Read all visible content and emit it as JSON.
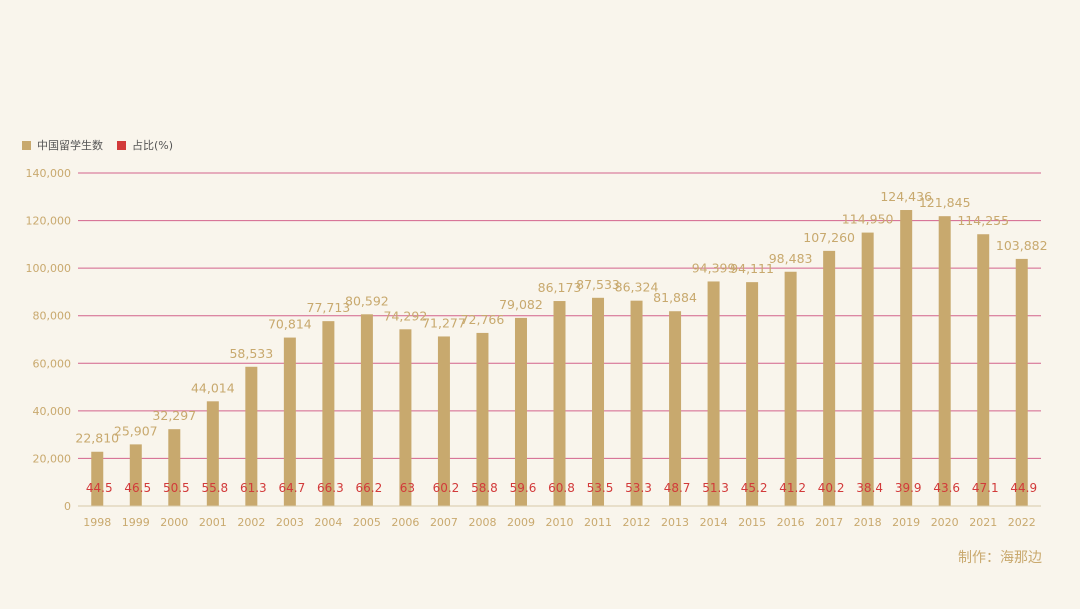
{
  "colors": {
    "background": "#f9f5ec",
    "bar": "#c8a96e",
    "grid": "#c7336b",
    "axis_text": "#c9a96e",
    "value_label": "#c8a96e",
    "share_label": "#d23a3a"
  },
  "legend": {
    "items": [
      {
        "label": "中国留学生数",
        "color": "#c8a96e"
      },
      {
        "label": "占比(%)",
        "color": "#d23a3a"
      }
    ]
  },
  "credit": "制作：海那边",
  "chart_data": {
    "type": "bar",
    "categories": [
      "1998",
      "1999",
      "2000",
      "2001",
      "2002",
      "2003",
      "2004",
      "2005",
      "2006",
      "2007",
      "2008",
      "2009",
      "2010",
      "2011",
      "2012",
      "2013",
      "2014",
      "2015",
      "2016",
      "2017",
      "2018",
      "2019",
      "2020",
      "2021",
      "2022"
    ],
    "series": [
      {
        "name": "中国留学生数",
        "values": [
          22810,
          25907,
          32297,
          44014,
          58533,
          70814,
          77713,
          80592,
          74292,
          71277,
          72766,
          79082,
          86173,
          87533,
          86324,
          81884,
          94399,
          94111,
          98483,
          107260,
          114950,
          124436,
          121845,
          114255,
          103882
        ],
        "labels": [
          "22,810",
          "25,907",
          "32,297",
          "44,014",
          "58,533",
          "70,814",
          "77,713",
          "80,592",
          "74,292",
          "71,277",
          "72,766",
          "79,082",
          "86,173",
          "87,533",
          "86,324",
          "81,884",
          "94,399",
          "94,111",
          "98,483",
          "107,260",
          "114,950",
          "124,436",
          "121,845",
          "114,255",
          "103,882"
        ]
      },
      {
        "name": "占比(%)",
        "values": [
          44.5,
          46.5,
          50.5,
          55.8,
          61.3,
          64.7,
          66.3,
          66.2,
          63,
          60.2,
          58.8,
          59.6,
          60.8,
          53.5,
          53.3,
          48.7,
          51.3,
          45.2,
          41.2,
          40.2,
          38.4,
          39.9,
          43.6,
          47.1,
          44.9
        ],
        "labels": [
          "44.5",
          "46.5",
          "50.5",
          "55.8",
          "61.3",
          "64.7",
          "66.3",
          "66.2",
          "63",
          "60.2",
          "58.8",
          "59.6",
          "60.8",
          "53.5",
          "53.3",
          "48.7",
          "51.3",
          "45.2",
          "41.2",
          "40.2",
          "38.4",
          "39.9",
          "43.6",
          "47.1",
          "44.9"
        ]
      }
    ],
    "ylim": [
      0,
      140000
    ],
    "yticks": [
      "0",
      "20,000",
      "40,000",
      "60,000",
      "80,000",
      "100,000",
      "120,000",
      "140,000"
    ],
    "grid": true,
    "legend_position": "top-left"
  }
}
